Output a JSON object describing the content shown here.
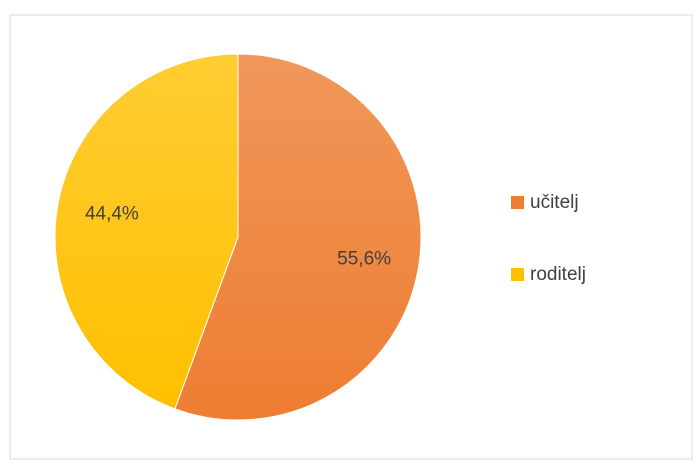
{
  "chart_data": {
    "type": "pie",
    "categories": [
      "učitelj",
      "roditelj"
    ],
    "values": [
      55.6,
      44.4
    ],
    "value_labels": [
      "55,6%",
      "44,4%"
    ],
    "colors": [
      "#ed7d31",
      "#ffc000"
    ],
    "legend": "right"
  }
}
